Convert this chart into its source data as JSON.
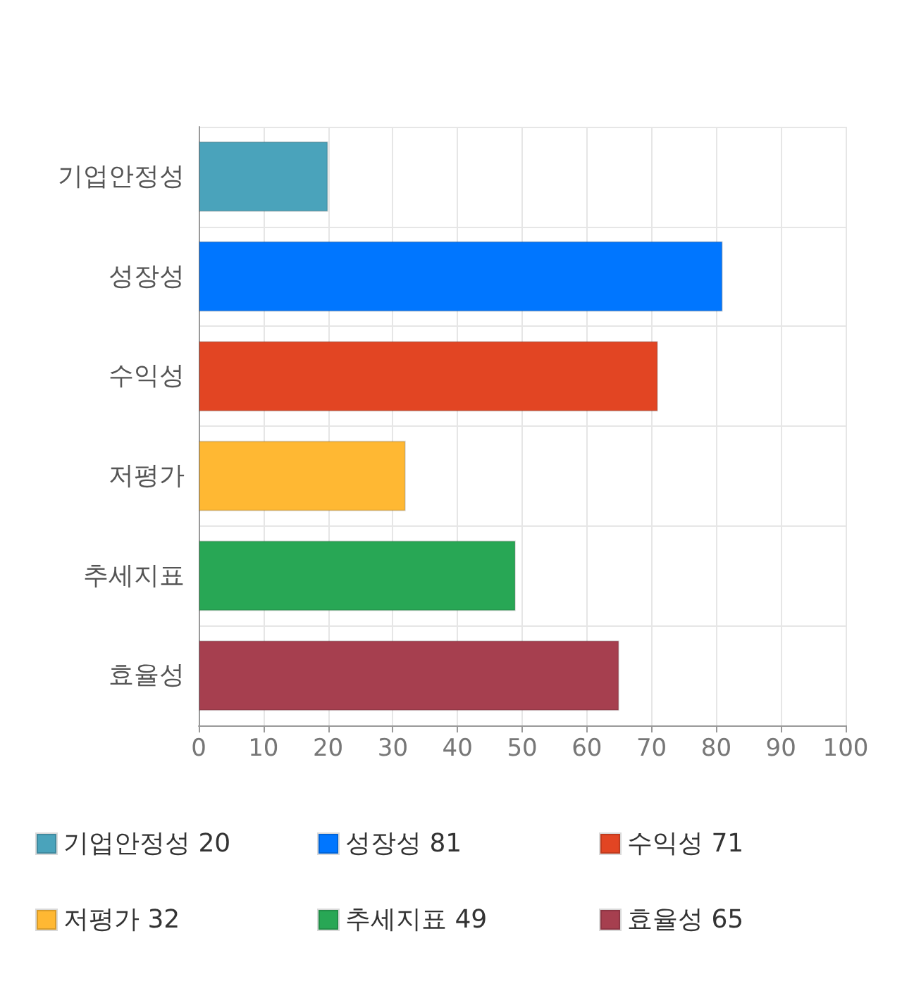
{
  "chart_data": {
    "type": "bar",
    "orientation": "horizontal",
    "categories": [
      "기업안정성",
      "성장성",
      "수익성",
      "저평가",
      "추세지표",
      "효율성"
    ],
    "series": [
      {
        "name": "기업안정성 20",
        "color": "#4aa3bb",
        "values": [
          20,
          null,
          null,
          null,
          null,
          null
        ]
      },
      {
        "name": "성장성 81",
        "color": "#0076ff",
        "values": [
          null,
          81,
          null,
          null,
          null,
          null
        ]
      },
      {
        "name": "수익성 71",
        "color": "#e24523",
        "values": [
          null,
          null,
          71,
          null,
          null,
          null
        ]
      },
      {
        "name": "저평가 32",
        "color": "#ffb833",
        "values": [
          null,
          null,
          null,
          32,
          null,
          null
        ]
      },
      {
        "name": "추세지표 49",
        "color": "#28a755",
        "values": [
          null,
          null,
          null,
          null,
          49,
          null
        ]
      },
      {
        "name": "효율성 65",
        "color": "#a63f4f",
        "values": [
          null,
          null,
          null,
          null,
          null,
          65
        ]
      }
    ],
    "xlim": [
      0,
      100
    ],
    "xticks": [
      0,
      10,
      20,
      30,
      40,
      50,
      60,
      70,
      80,
      90,
      100
    ],
    "grid": true,
    "legend": "bottom"
  }
}
